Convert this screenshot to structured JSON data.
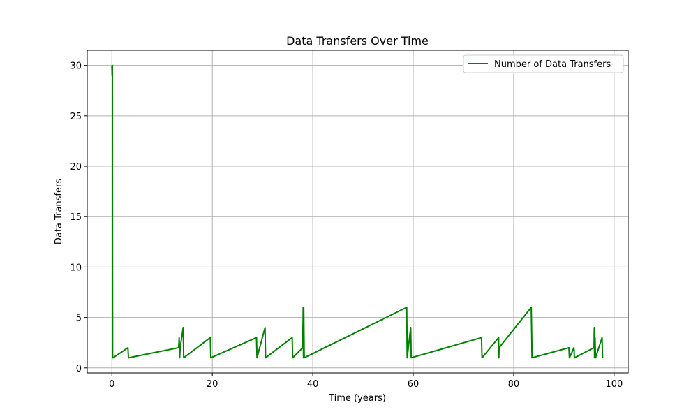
{
  "chart_data": {
    "type": "line",
    "title": "Data Transfers Over Time",
    "xlabel": "Time (years)",
    "ylabel": "Data Transfers",
    "xlim": [
      -4.9,
      102.8
    ],
    "ylim": [
      -0.5,
      31.5
    ],
    "xticks": [
      0,
      20,
      40,
      60,
      80,
      100
    ],
    "yticks": [
      0,
      5,
      10,
      15,
      20,
      25,
      30
    ],
    "grid": true,
    "legend_position": "top-right",
    "series": [
      {
        "name": "Number of Data Transfers",
        "color": "#008000",
        "x": [
          0,
          0.05,
          0.1,
          0.15,
          0.2,
          0.25,
          3.2,
          3.3,
          13.3,
          13.4,
          13.5,
          13.6,
          14.2,
          14.3,
          19.6,
          19.7,
          28.8,
          28.9,
          30.5,
          30.6,
          35.9,
          36.0,
          38.0,
          38.1,
          38.15,
          38.2,
          38.3,
          58.7,
          58.8,
          59.5,
          59.6,
          73.6,
          73.7,
          77.0,
          77.05,
          77.1,
          83.5,
          83.6,
          83.65,
          91.0,
          91.1,
          92.0,
          92.1,
          96.0,
          96.05,
          96.1,
          96.2,
          96.3,
          97.6,
          97.7
        ],
        "y": [
          30,
          29,
          30,
          1,
          1,
          1,
          2,
          1,
          2,
          3,
          1,
          2,
          4,
          1,
          3,
          1,
          3,
          1,
          4,
          1,
          3,
          1,
          2,
          6,
          1,
          6,
          1,
          6,
          1,
          4,
          1,
          3,
          1,
          3,
          1,
          2,
          6,
          3,
          1,
          2,
          1,
          2,
          1,
          2,
          4,
          1,
          3,
          1,
          3,
          1
        ]
      }
    ]
  }
}
